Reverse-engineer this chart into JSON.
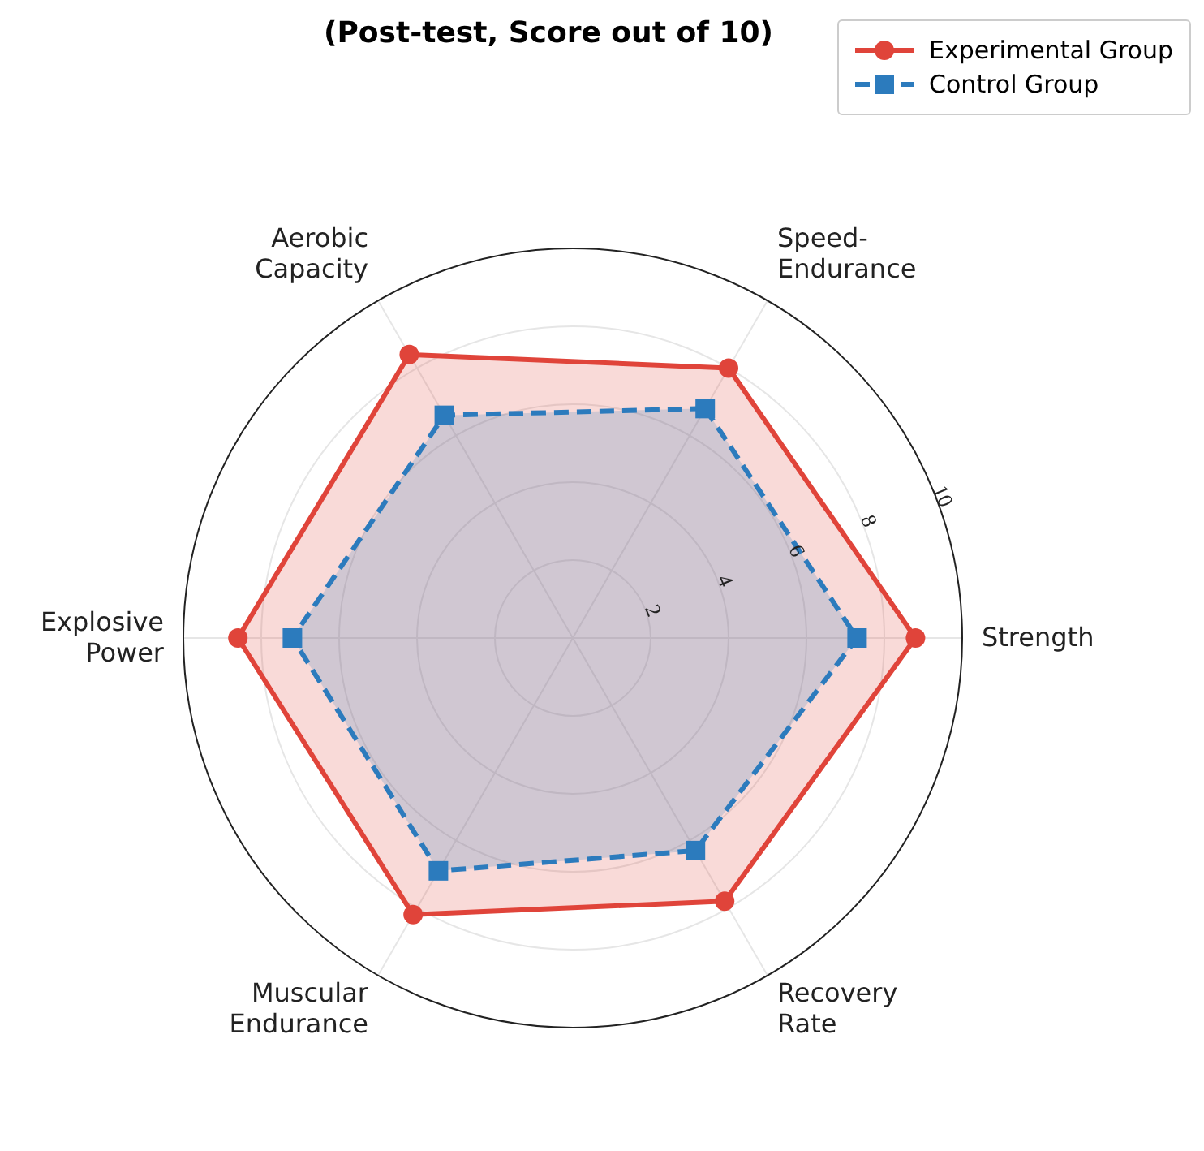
{
  "chart_data": {
    "type": "radar",
    "title": "(Post-test, Score out of 10)",
    "categories": [
      "Speed-\nEndurance",
      "Strength",
      "Recovery\nRate",
      "Muscular\nEndurance",
      "Explosive\nPower",
      "Aerobic\nCapacity"
    ],
    "series": [
      {
        "name": "Experimental Group",
        "color": "#e0443a",
        "marker": "circle",
        "line_style": "solid",
        "values": [
          8.0,
          8.8,
          7.8,
          8.2,
          8.6,
          8.4
        ]
      },
      {
        "name": "Control Group",
        "color": "#2c7bbd",
        "marker": "square",
        "line_style": "dashed",
        "values": [
          6.8,
          7.3,
          6.3,
          6.9,
          7.2,
          6.6
        ]
      }
    ],
    "ylim": [
      0,
      10
    ],
    "yticks": [
      2,
      4,
      6,
      8,
      10
    ],
    "grid": true,
    "legend": "top right"
  }
}
